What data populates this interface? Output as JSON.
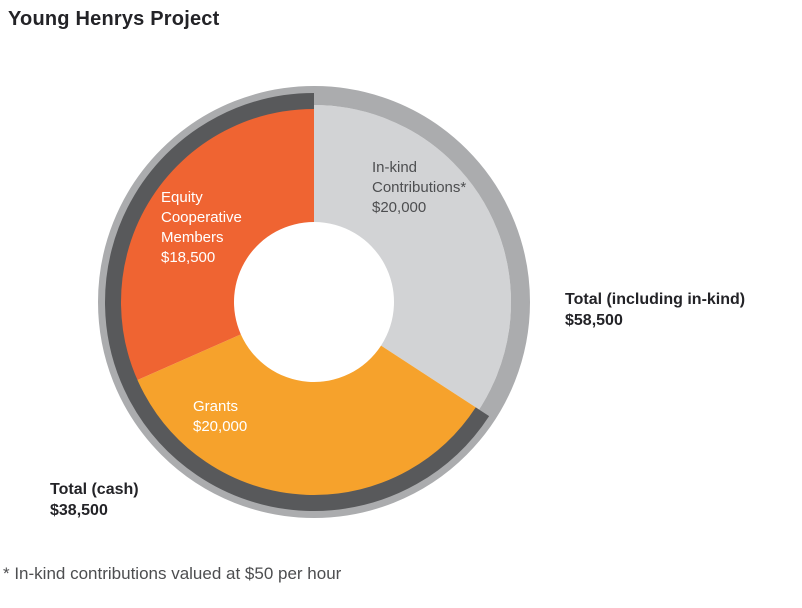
{
  "title": "Young Henrys Project",
  "footnote": "* In-kind contributions valued at $50 per hour",
  "colors": {
    "background": "#FFFFFF",
    "ring": "#ABACAE",
    "cash_ring": "#58595B",
    "text_dark": "#232327",
    "text_gray": "#4D4E50",
    "label_on_slice": "#FFFFFF"
  },
  "chart_data": {
    "type": "pie",
    "subtype": "donut",
    "title": "Young Henrys Project",
    "units": "dollars",
    "total": 58500,
    "legend": "none",
    "start_angle_deg": 0,
    "direction": "clockwise",
    "slices": [
      {
        "label": "In-kind\nContributions*",
        "display_value": "$20,000",
        "value": 20000,
        "color": "#D2D3D5",
        "cash": false,
        "label_color": "#4D4E50"
      },
      {
        "label": "Grants",
        "display_value": "$20,000",
        "value": 20000,
        "color": "#F6A22C",
        "cash": true,
        "label_color": "#FFFFFF"
      },
      {
        "label": "Equity\nCooperative\nMembers",
        "display_value": "$18,500",
        "value": 18500,
        "color": "#EF6432",
        "cash": true,
        "label_color": "#FFFFFF"
      }
    ],
    "totals": [
      {
        "label": "Total (including in-kind)",
        "display_value": "$58,500",
        "value": 58500
      },
      {
        "label": "Total (cash)",
        "display_value": "$38,500",
        "value": 38500
      }
    ],
    "annotations": [
      "* In-kind contributions valued at $50 per hour"
    ]
  }
}
